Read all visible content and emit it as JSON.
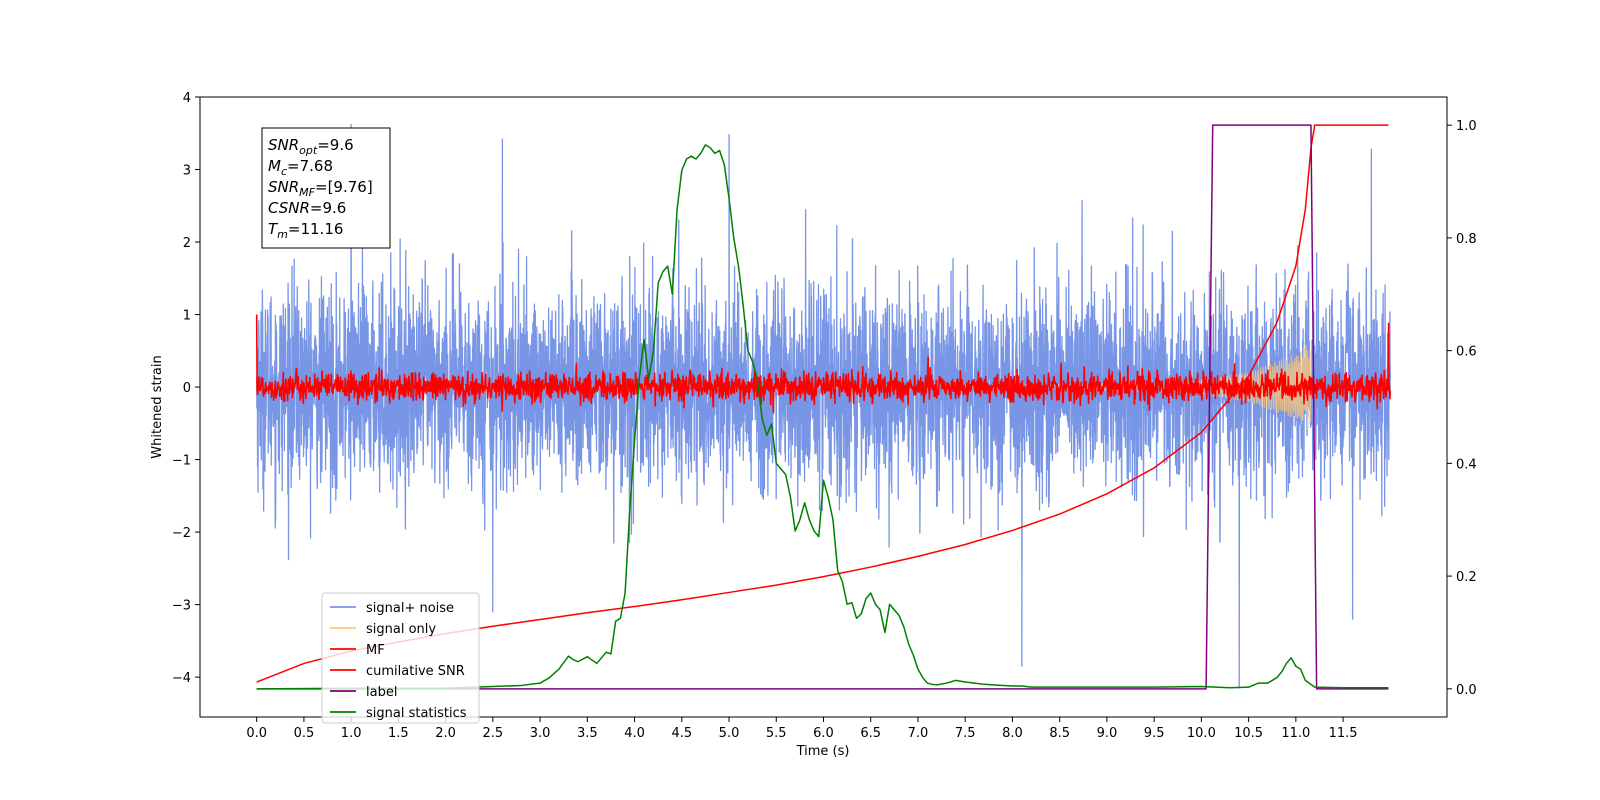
{
  "chart_data": {
    "type": "line",
    "title": "",
    "xlabel": "Time (s)",
    "ylabel": "Whitened strain",
    "y2label": "",
    "xlim": [
      -0.6,
      12.6
    ],
    "ylim": [
      -4.55,
      4.0
    ],
    "y2lim": [
      -0.05,
      1.05
    ],
    "x_ticks": [
      0.0,
      0.5,
      1.0,
      1.5,
      2.0,
      2.5,
      3.0,
      3.5,
      4.0,
      4.5,
      5.0,
      5.5,
      6.0,
      6.5,
      7.0,
      7.5,
      8.0,
      8.5,
      9.0,
      9.5,
      10.0,
      10.5,
      11.0,
      11.5
    ],
    "x_tick_labels": [
      "0.0",
      "0.5",
      "1.0",
      "1.5",
      "2.0",
      "2.5",
      "3.0",
      "3.5",
      "4.0",
      "4.5",
      "5.0",
      "5.5",
      "6.0",
      "6.5",
      "7.0",
      "7.5",
      "8.0",
      "8.5",
      "9.0",
      "9.5",
      "10.0",
      "10.5",
      "11.0",
      "11.5"
    ],
    "y_ticks": [
      4,
      3,
      2,
      1,
      0,
      -1,
      -2,
      -3,
      -4
    ],
    "y_tick_labels": [
      "4",
      "3",
      "2",
      "1",
      "0",
      "−1",
      "−2",
      "−3",
      "−4"
    ],
    "y2_ticks": [
      1.0,
      0.8,
      0.6,
      0.4,
      0.2,
      0.0
    ],
    "y2_tick_labels": [
      "1.0",
      "0.8",
      "0.6",
      "0.4",
      "0.2",
      "0.0"
    ],
    "grid": false,
    "legend_position": "lower-left",
    "annotation": {
      "lines": [
        {
          "sym": "SNR",
          "sub": "opt",
          "value": "=9.6"
        },
        {
          "sym": "M",
          "sub": "c",
          "value": "=7.68"
        },
        {
          "sym": "SNR",
          "sub": "MF",
          "value": "=[9.76]"
        },
        {
          "sym": "CSNR",
          "sub": "",
          "value": "=9.6"
        },
        {
          "sym": "T",
          "sub": "m",
          "value": "=11.16"
        }
      ]
    },
    "series": [
      {
        "name": "signal+ noise",
        "color": "#7895e6",
        "axis": "left",
        "kind": "noise",
        "x_range": [
          0.0,
          12.0
        ],
        "std": 0.68,
        "spikes": [
          [
            1.0,
            3.62
          ],
          [
            2.6,
            3.42
          ],
          [
            5.0,
            3.48
          ],
          [
            11.8,
            3.28
          ],
          [
            8.1,
            -3.85
          ],
          [
            2.5,
            -3.1
          ],
          [
            11.6,
            -3.2
          ],
          [
            10.4,
            -4.15
          ]
        ]
      },
      {
        "name": "signal only",
        "color": "#ffc87a",
        "axis": "left",
        "kind": "chirp",
        "x_range": [
          0.0,
          11.16
        ],
        "amplitude_points": [
          [
            0.0,
            0.005
          ],
          [
            8.0,
            0.03
          ],
          [
            9.5,
            0.06
          ],
          [
            10.0,
            0.1
          ],
          [
            10.5,
            0.2
          ],
          [
            11.0,
            0.45
          ],
          [
            11.15,
            0.62
          ]
        ]
      },
      {
        "name": "MF",
        "color": "#ff0000",
        "axis": "left",
        "kind": "noise",
        "x_range": [
          0.0,
          12.0
        ],
        "std": 0.1,
        "spikes": [
          [
            0.0,
            1.0
          ],
          [
            11.98,
            0.88
          ]
        ]
      },
      {
        "name": "cumilative SNR",
        "color": "#ff0000",
        "axis": "right",
        "x": [
          0.0,
          0.5,
          1.0,
          1.5,
          2.0,
          2.5,
          3.0,
          3.5,
          4.0,
          4.5,
          5.0,
          5.5,
          6.0,
          6.5,
          7.0,
          7.5,
          8.0,
          8.5,
          9.0,
          9.5,
          10.0,
          10.5,
          10.8,
          11.0,
          11.1,
          11.16,
          11.2,
          11.98
        ],
        "y": [
          0.012,
          0.045,
          0.067,
          0.083,
          0.098,
          0.111,
          0.123,
          0.135,
          0.146,
          0.158,
          0.171,
          0.184,
          0.199,
          0.216,
          0.235,
          0.256,
          0.281,
          0.31,
          0.346,
          0.392,
          0.455,
          0.555,
          0.65,
          0.75,
          0.85,
          0.96,
          1.0,
          1.0
        ]
      },
      {
        "name": "label",
        "color": "#800080",
        "axis": "right",
        "x": [
          0.0,
          10.05,
          10.12,
          11.16,
          11.22,
          11.98
        ],
        "y": [
          0.0,
          0.0,
          1.0,
          1.0,
          0.0,
          0.0
        ]
      },
      {
        "name": "signal statistics",
        "color": "#008000",
        "axis": "right",
        "x": [
          0.0,
          1.0,
          2.0,
          2.5,
          2.8,
          3.0,
          3.1,
          3.2,
          3.3,
          3.35,
          3.4,
          3.5,
          3.6,
          3.7,
          3.75,
          3.8,
          3.85,
          3.9,
          3.95,
          4.0,
          4.05,
          4.1,
          4.15,
          4.2,
          4.25,
          4.3,
          4.35,
          4.4,
          4.45,
          4.5,
          4.55,
          4.6,
          4.65,
          4.7,
          4.75,
          4.8,
          4.85,
          4.9,
          4.95,
          5.0,
          5.05,
          5.1,
          5.15,
          5.2,
          5.25,
          5.3,
          5.35,
          5.4,
          5.45,
          5.5,
          5.55,
          5.6,
          5.65,
          5.7,
          5.75,
          5.8,
          5.85,
          5.9,
          5.95,
          6.0,
          6.05,
          6.1,
          6.15,
          6.2,
          6.25,
          6.3,
          6.35,
          6.4,
          6.45,
          6.5,
          6.55,
          6.6,
          6.65,
          6.7,
          6.75,
          6.8,
          6.85,
          6.9,
          6.95,
          7.0,
          7.05,
          7.1,
          7.15,
          7.2,
          7.3,
          7.4,
          7.5,
          7.6,
          7.7,
          7.8,
          7.9,
          8.0,
          8.1,
          8.2,
          8.5,
          9.0,
          9.5,
          10.0,
          10.3,
          10.5,
          10.6,
          10.7,
          10.8,
          10.85,
          10.9,
          10.95,
          11.0,
          11.05,
          11.1,
          11.2,
          11.5,
          11.98
        ],
        "y": [
          0.0,
          0.001,
          0.001,
          0.004,
          0.006,
          0.01,
          0.02,
          0.035,
          0.058,
          0.052,
          0.048,
          0.057,
          0.045,
          0.065,
          0.062,
          0.12,
          0.125,
          0.17,
          0.32,
          0.44,
          0.55,
          0.62,
          0.55,
          0.6,
          0.72,
          0.74,
          0.75,
          0.7,
          0.85,
          0.92,
          0.94,
          0.945,
          0.94,
          0.95,
          0.965,
          0.96,
          0.95,
          0.955,
          0.93,
          0.87,
          0.8,
          0.75,
          0.68,
          0.6,
          0.58,
          0.55,
          0.48,
          0.45,
          0.47,
          0.4,
          0.39,
          0.38,
          0.34,
          0.28,
          0.3,
          0.33,
          0.3,
          0.28,
          0.27,
          0.37,
          0.34,
          0.3,
          0.21,
          0.19,
          0.15,
          0.153,
          0.125,
          0.133,
          0.16,
          0.17,
          0.15,
          0.14,
          0.1,
          0.15,
          0.14,
          0.13,
          0.11,
          0.08,
          0.06,
          0.035,
          0.02,
          0.01,
          0.008,
          0.007,
          0.01,
          0.015,
          0.012,
          0.01,
          0.008,
          0.007,
          0.006,
          0.005,
          0.005,
          0.003,
          0.003,
          0.003,
          0.003,
          0.004,
          0.002,
          0.003,
          0.01,
          0.01,
          0.02,
          0.03,
          0.045,
          0.055,
          0.04,
          0.035,
          0.015,
          0.003,
          0.002,
          0.002
        ]
      }
    ]
  }
}
